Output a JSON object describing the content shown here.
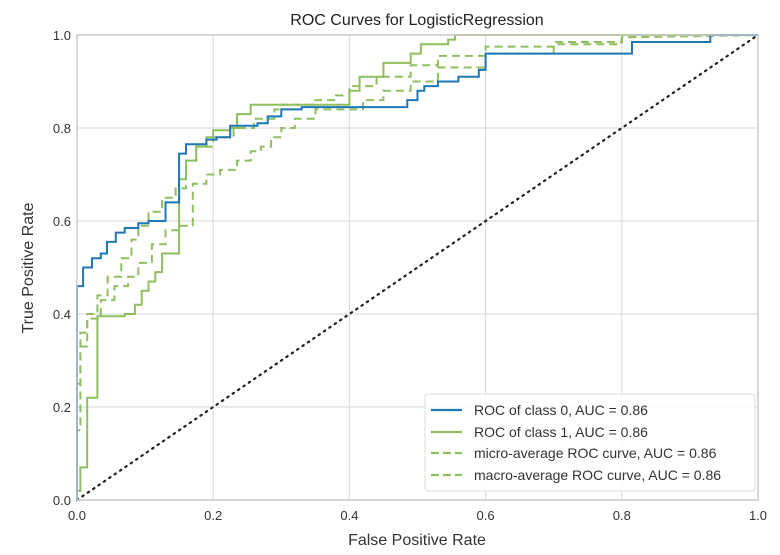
{
  "chart_data": {
    "type": "line",
    "title": "ROC Curves for LogisticRegression",
    "xlabel": "False Positive Rate",
    "ylabel": "True Positive Rate",
    "xlim": [
      0.0,
      1.0
    ],
    "ylim": [
      0.0,
      1.0
    ],
    "grid": true,
    "legend_position": "lower-right",
    "x_ticks": [
      "0.0",
      "0.2",
      "0.4",
      "0.6",
      "0.8",
      "1.0"
    ],
    "y_ticks": [
      "0.0",
      "0.2",
      "0.4",
      "0.6",
      "0.8",
      "1.0"
    ],
    "x_tick_values": [
      0.0,
      0.2,
      0.4,
      0.6,
      0.8,
      1.0
    ],
    "y_tick_values": [
      0.0,
      0.2,
      0.4,
      0.6,
      0.8,
      1.0
    ],
    "series": [
      {
        "name": "ROC of class 0, AUC = 0.86",
        "color": "#1f77b4",
        "style": "solid",
        "auc": 0.86,
        "fpr": [
          0,
          0,
          0.009,
          0.009,
          0.022,
          0.022,
          0.035,
          0.035,
          0.044,
          0.044,
          0.057,
          0.057,
          0.07,
          0.07,
          0.09,
          0.09,
          0.105,
          0.105,
          0.13,
          0.13,
          0.15,
          0.15,
          0.16,
          0.16,
          0.19,
          0.19,
          0.205,
          0.205,
          0.225,
          0.225,
          0.265,
          0.265,
          0.28,
          0.28,
          0.3,
          0.3,
          0.33,
          0.33,
          0.485,
          0.485,
          0.5,
          0.5,
          0.51,
          0.51,
          0.53,
          0.53,
          0.56,
          0.56,
          0.59,
          0.59,
          0.6,
          0.6,
          0.815,
          0.815,
          0.93,
          0.93,
          1.0
        ],
        "tpr": [
          0,
          0.46,
          0.46,
          0.5,
          0.5,
          0.52,
          0.52,
          0.53,
          0.53,
          0.555,
          0.555,
          0.575,
          0.575,
          0.585,
          0.585,
          0.595,
          0.595,
          0.6,
          0.6,
          0.64,
          0.64,
          0.745,
          0.745,
          0.765,
          0.765,
          0.775,
          0.775,
          0.78,
          0.78,
          0.805,
          0.805,
          0.81,
          0.81,
          0.825,
          0.825,
          0.84,
          0.84,
          0.845,
          0.845,
          0.86,
          0.86,
          0.88,
          0.88,
          0.89,
          0.89,
          0.9,
          0.9,
          0.91,
          0.91,
          0.925,
          0.925,
          0.96,
          0.96,
          0.985,
          0.985,
          1.0,
          1.0
        ]
      },
      {
        "name": "ROC of class 1, AUC = 0.86",
        "color": "#8fbf5f",
        "style": "solid",
        "auc": 0.86,
        "fpr": [
          0,
          0,
          0.005,
          0.005,
          0.015,
          0.015,
          0.03,
          0.03,
          0.07,
          0.07,
          0.085,
          0.085,
          0.095,
          0.095,
          0.105,
          0.105,
          0.115,
          0.115,
          0.125,
          0.125,
          0.15,
          0.15,
          0.16,
          0.16,
          0.175,
          0.175,
          0.19,
          0.19,
          0.2,
          0.2,
          0.225,
          0.225,
          0.235,
          0.235,
          0.255,
          0.255,
          0.4,
          0.4,
          0.415,
          0.415,
          0.45,
          0.45,
          0.49,
          0.49,
          0.505,
          0.505,
          0.545,
          0.545,
          0.555,
          0.555,
          1.0
        ],
        "tpr": [
          0,
          0.02,
          0.02,
          0.07,
          0.07,
          0.22,
          0.22,
          0.395,
          0.395,
          0.4,
          0.4,
          0.42,
          0.42,
          0.45,
          0.45,
          0.47,
          0.47,
          0.49,
          0.49,
          0.53,
          0.53,
          0.69,
          0.69,
          0.73,
          0.73,
          0.76,
          0.76,
          0.78,
          0.78,
          0.795,
          0.795,
          0.8,
          0.8,
          0.83,
          0.83,
          0.85,
          0.85,
          0.88,
          0.88,
          0.91,
          0.91,
          0.94,
          0.94,
          0.96,
          0.96,
          0.98,
          0.98,
          0.99,
          0.99,
          1.0,
          1.0
        ]
      },
      {
        "name": "micro-average ROC curve, AUC = 0.86",
        "color": "#8fbf5f",
        "style": "dashed",
        "auc": 0.86,
        "fpr": [
          0,
          0,
          0.005,
          0.005,
          0.015,
          0.015,
          0.03,
          0.03,
          0.045,
          0.045,
          0.065,
          0.065,
          0.08,
          0.08,
          0.09,
          0.09,
          0.105,
          0.105,
          0.125,
          0.125,
          0.145,
          0.145,
          0.16,
          0.16,
          0.175,
          0.175,
          0.2,
          0.2,
          0.23,
          0.23,
          0.26,
          0.26,
          0.29,
          0.29,
          0.3,
          0.3,
          0.35,
          0.35,
          0.38,
          0.38,
          0.4,
          0.4,
          0.44,
          0.44,
          0.49,
          0.49,
          0.53,
          0.53,
          0.6,
          0.6,
          0.7,
          0.7,
          0.8,
          0.8,
          1.0
        ],
        "tpr": [
          0,
          0.25,
          0.25,
          0.36,
          0.36,
          0.4,
          0.4,
          0.44,
          0.44,
          0.48,
          0.48,
          0.52,
          0.52,
          0.56,
          0.56,
          0.59,
          0.59,
          0.62,
          0.62,
          0.65,
          0.65,
          0.67,
          0.67,
          0.73,
          0.73,
          0.76,
          0.76,
          0.78,
          0.78,
          0.8,
          0.8,
          0.82,
          0.82,
          0.84,
          0.84,
          0.85,
          0.85,
          0.86,
          0.86,
          0.87,
          0.87,
          0.89,
          0.89,
          0.91,
          0.91,
          0.935,
          0.935,
          0.955,
          0.955,
          0.975,
          0.975,
          0.985,
          0.985,
          0.995,
          1.0
        ]
      },
      {
        "name": "macro-average ROC curve, AUC = 0.86",
        "color": "#8fbf5f",
        "style": "dashed",
        "auc": 0.86,
        "fpr": [
          0,
          0,
          0.005,
          0.005,
          0.015,
          0.015,
          0.035,
          0.035,
          0.055,
          0.055,
          0.075,
          0.075,
          0.09,
          0.09,
          0.11,
          0.11,
          0.13,
          0.13,
          0.15,
          0.15,
          0.17,
          0.17,
          0.19,
          0.19,
          0.21,
          0.21,
          0.235,
          0.235,
          0.255,
          0.255,
          0.27,
          0.27,
          0.285,
          0.285,
          0.3,
          0.3,
          0.32,
          0.32,
          0.35,
          0.35,
          0.42,
          0.42,
          0.45,
          0.45,
          0.49,
          0.49,
          0.53,
          0.53,
          0.6,
          0.6,
          0.7,
          0.7,
          0.8,
          0.8,
          1.0
        ],
        "tpr": [
          0,
          0.15,
          0.15,
          0.33,
          0.33,
          0.39,
          0.39,
          0.43,
          0.43,
          0.46,
          0.46,
          0.48,
          0.48,
          0.51,
          0.51,
          0.55,
          0.55,
          0.58,
          0.58,
          0.59,
          0.59,
          0.68,
          0.68,
          0.7,
          0.7,
          0.71,
          0.71,
          0.73,
          0.73,
          0.75,
          0.75,
          0.76,
          0.76,
          0.78,
          0.78,
          0.8,
          0.8,
          0.82,
          0.82,
          0.84,
          0.84,
          0.86,
          0.86,
          0.88,
          0.88,
          0.9,
          0.9,
          0.93,
          0.93,
          0.96,
          0.96,
          0.98,
          0.98,
          0.995,
          1.0
        ]
      }
    ],
    "reference_line": {
      "name": "chance",
      "color": "#222222",
      "style": "dotted",
      "fpr": [
        0,
        1
      ],
      "tpr": [
        0,
        1
      ]
    }
  }
}
